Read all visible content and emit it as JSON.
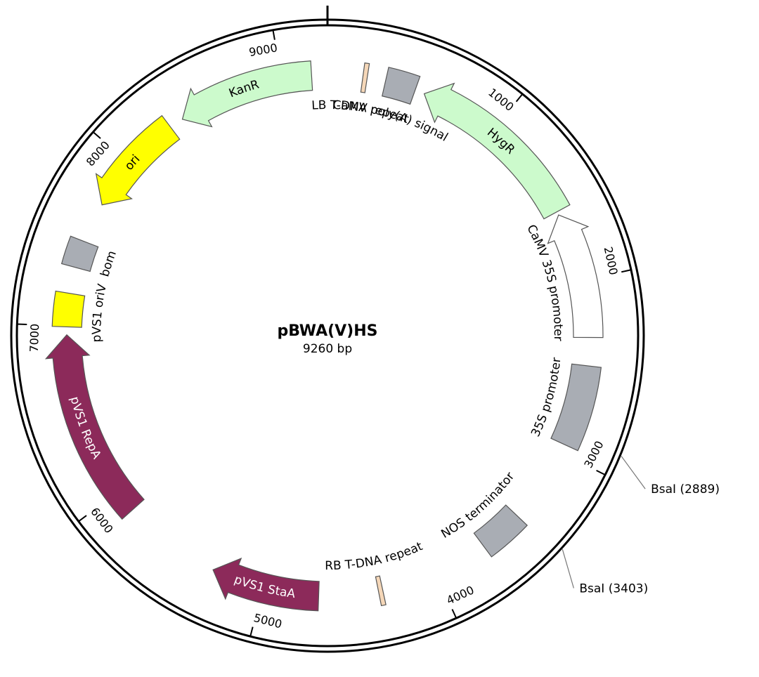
{
  "plasmid": {
    "name": "pBWA(V)HS",
    "length_label": "9260 bp",
    "length_bp": 9260
  },
  "colors": {
    "backbone": "#000000",
    "hygr": "#ccfacc",
    "kanr": "#ccfacc",
    "ori": "#ffff00",
    "grey_feature": "#a9adb4",
    "repeat": "#f5d7b8",
    "pvs1": "#8c2a5a",
    "promoter_white": "#ffffff",
    "feature_stroke": "#555555"
  },
  "ticks": [
    {
      "bp": 1000,
      "label": "1000"
    },
    {
      "bp": 2000,
      "label": "2000"
    },
    {
      "bp": 3000,
      "label": "3000"
    },
    {
      "bp": 4000,
      "label": "4000"
    },
    {
      "bp": 5000,
      "label": "5000"
    },
    {
      "bp": 6000,
      "label": "6000"
    },
    {
      "bp": 7000,
      "label": "7000"
    },
    {
      "bp": 8000,
      "label": "8000"
    },
    {
      "bp": 9000,
      "label": "9000"
    }
  ],
  "features": [
    {
      "id": "lb-repeat",
      "label": "LB T-DNA repeat",
      "start": 200,
      "end": 225,
      "type": "box",
      "color": "repeat",
      "label_inside": false,
      "light": false
    },
    {
      "id": "camv-polya",
      "label": "CaMV poly(A) signal",
      "start": 330,
      "end": 505,
      "type": "box",
      "color": "grey_feature",
      "label_inside": false,
      "light": false
    },
    {
      "id": "hygr",
      "label": "HygR",
      "start": 560,
      "end": 1585,
      "type": "arrow-ccw",
      "color": "hygr",
      "label_inside": true,
      "light": false
    },
    {
      "id": "camv-35s",
      "label": "CaMV 35S promoter",
      "start": 1605,
      "end": 2325,
      "type": "arrow-ccw",
      "color": "promoter_white",
      "label_inside": false,
      "light": false
    },
    {
      "id": "35s-promoter",
      "label": "35S promoter",
      "start": 2485,
      "end": 2950,
      "type": "box",
      "color": "grey_feature",
      "label_inside": false,
      "light": false
    },
    {
      "id": "nos-term",
      "label": "NOS terminator",
      "start": 3435,
      "end": 3690,
      "type": "box",
      "color": "grey_feature",
      "label_inside": false,
      "light": false
    },
    {
      "id": "rb-repeat",
      "label": "RB T-DNA repeat",
      "start": 4315,
      "end": 4340,
      "type": "box",
      "color": "repeat",
      "label_inside": false,
      "light": false
    },
    {
      "id": "pvs1-staa",
      "label": "pVS1 StaA",
      "start": 4680,
      "end": 5300,
      "type": "arrow-cw",
      "color": "pvs1",
      "label_inside": true,
      "light": true
    },
    {
      "id": "pvs1-repa",
      "label": "pVS1 RepA",
      "start": 5870,
      "end": 6950,
      "type": "arrow-cw",
      "color": "pvs1",
      "label_inside": true,
      "light": true
    },
    {
      "id": "pvs1-oriv",
      "label": "pVS1 oriV",
      "start": 6995,
      "end": 7185,
      "type": "box",
      "color": "ori",
      "label_inside": false,
      "light": false
    },
    {
      "id": "bom",
      "label": "bom",
      "start": 7335,
      "end": 7490,
      "type": "box",
      "color": "grey_feature",
      "label_inside": false,
      "light": false
    },
    {
      "id": "ori",
      "label": "ori",
      "start": 7720,
      "end": 8310,
      "type": "arrow-ccw",
      "color": "ori",
      "label_inside": true,
      "light": false
    },
    {
      "id": "kanr",
      "label": "KanR",
      "start": 8390,
      "end": 9170,
      "type": "arrow-ccw",
      "color": "kanr",
      "label_inside": true,
      "light": false
    }
  ],
  "sites": [
    {
      "id": "bsai-1",
      "enzyme": "BsaI",
      "position": 2889,
      "label": "BsaI  (2889)"
    },
    {
      "id": "bsai-2",
      "enzyme": "BsaI",
      "position": 3403,
      "label": "BsaI  (3403)"
    }
  ]
}
